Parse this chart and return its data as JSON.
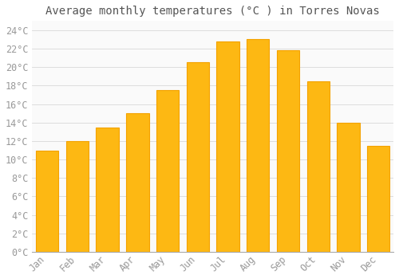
{
  "title": "Average monthly temperatures (°C ) in Torres Novas",
  "months": [
    "Jan",
    "Feb",
    "Mar",
    "Apr",
    "May",
    "Jun",
    "Jul",
    "Aug",
    "Sep",
    "Oct",
    "Nov",
    "Dec"
  ],
  "values": [
    11.0,
    12.0,
    13.5,
    15.0,
    17.5,
    20.5,
    22.8,
    23.0,
    21.8,
    18.5,
    14.0,
    11.5
  ],
  "bar_color": "#FDB813",
  "bar_edge_color": "#F4A200",
  "background_color": "#FFFFFF",
  "plot_bg_color": "#FAFAFA",
  "grid_color": "#D8D8D8",
  "text_color": "#999999",
  "title_color": "#555555",
  "ylim": [
    0,
    25
  ],
  "yticks": [
    0,
    2,
    4,
    6,
    8,
    10,
    12,
    14,
    16,
    18,
    20,
    22,
    24
  ],
  "title_fontsize": 10,
  "tick_fontsize": 8.5,
  "bar_width": 0.75
}
